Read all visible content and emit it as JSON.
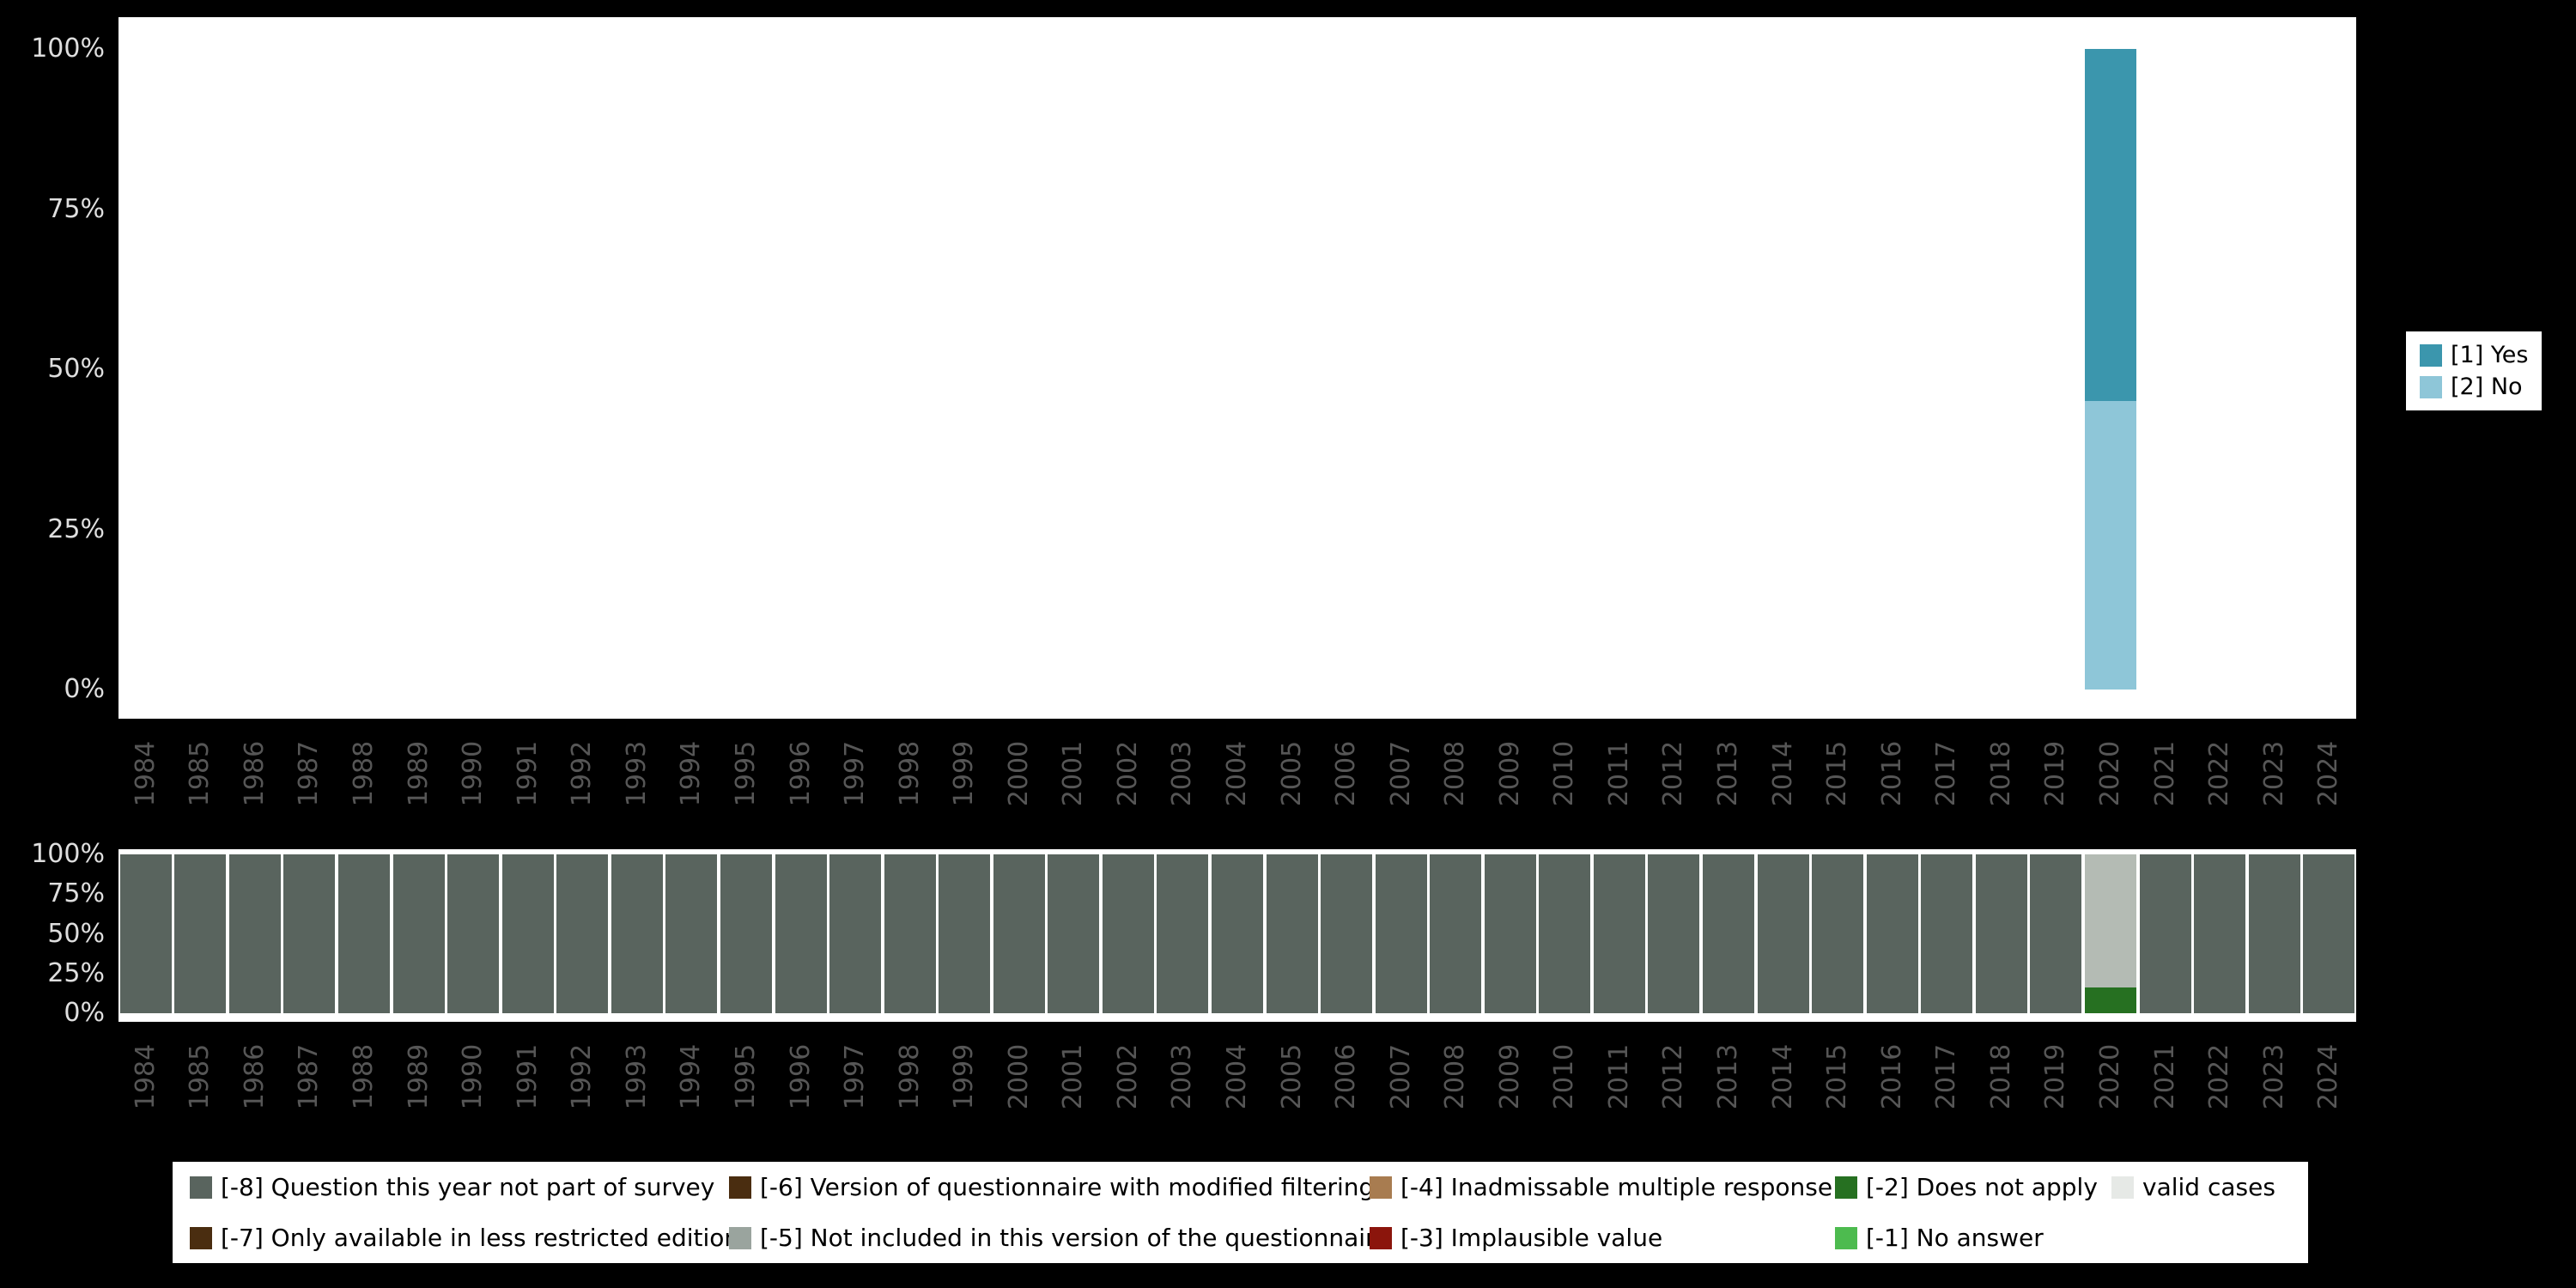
{
  "colors": {
    "background": "#000000",
    "plot_background": "#ffffff",
    "y_tick_label": "#dedede",
    "year_label": "#565656"
  },
  "chart_data": [
    {
      "id": "responses-over-time",
      "type": "bar",
      "stacked": true,
      "title": "",
      "xlabel": "",
      "ylabel": "",
      "ylim": [
        0,
        100
      ],
      "grid": false,
      "legend_position": "right",
      "y_ticks": [
        "0%",
        "25%",
        "50%",
        "75%",
        "100%"
      ],
      "categories": [
        "1984",
        "1985",
        "1986",
        "1987",
        "1988",
        "1989",
        "1990",
        "1991",
        "1992",
        "1993",
        "1994",
        "1995",
        "1996",
        "1997",
        "1998",
        "1999",
        "2000",
        "2001",
        "2002",
        "2003",
        "2004",
        "2005",
        "2006",
        "2007",
        "2008",
        "2009",
        "2010",
        "2011",
        "2012",
        "2013",
        "2014",
        "2015",
        "2016",
        "2017",
        "2018",
        "2019",
        "2020",
        "2021",
        "2022",
        "2023",
        "2024"
      ],
      "series": [
        {
          "name": "[1] Yes",
          "color": "#3b96ad",
          "values": {
            "2020": 55
          }
        },
        {
          "name": "[2] No",
          "color": "#8ec6d8",
          "values": {
            "2020": 45
          }
        }
      ]
    },
    {
      "id": "missing-values-over-time",
      "type": "bar",
      "stacked": true,
      "title": "",
      "xlabel": "",
      "ylabel": "",
      "ylim": [
        0,
        100
      ],
      "grid": false,
      "legend_position": "bottom",
      "y_ticks": [
        "0%",
        "25%",
        "50%",
        "75%",
        "100%"
      ],
      "categories": [
        "1984",
        "1985",
        "1986",
        "1987",
        "1988",
        "1989",
        "1990",
        "1991",
        "1992",
        "1993",
        "1994",
        "1995",
        "1996",
        "1997",
        "1998",
        "1999",
        "2000",
        "2001",
        "2002",
        "2003",
        "2004",
        "2005",
        "2006",
        "2007",
        "2008",
        "2009",
        "2010",
        "2011",
        "2012",
        "2013",
        "2014",
        "2015",
        "2016",
        "2017",
        "2018",
        "2019",
        "2020",
        "2021",
        "2022",
        "2023",
        "2024"
      ],
      "segment_order_note": "segments listed top to bottom",
      "default_segment": {
        "name": "[-8] Question this year not part of survey",
        "color": "#59645e",
        "value": 100
      },
      "overrides": {
        "2020": [
          {
            "name": "valid cases",
            "color": "#b4bbb4",
            "value": 84
          },
          {
            "name": "[-2] Does not apply",
            "color": "#267021",
            "value": 16
          }
        ]
      }
    }
  ],
  "legend_right": {
    "items": [
      {
        "label": "[1] Yes",
        "color": "#3b96ad"
      },
      {
        "label": "[2] No",
        "color": "#8ec6d8"
      }
    ]
  },
  "legend_bottom": {
    "rows": [
      [
        {
          "label": "[-8] Question this year not part of survey",
          "color": "#59645e"
        },
        {
          "label": "[-6] Version of questionnaire with modified filtering",
          "color": "#4a2d10"
        },
        {
          "label": "[-4] Inadmissable multiple response",
          "color": "#a87c50"
        },
        {
          "label": "[-2] Does not apply",
          "color": "#267021"
        },
        {
          "label": "valid cases",
          "color": "#e6e9e6"
        }
      ],
      [
        {
          "label": "[-7] Only available in less restricted edition",
          "color": "#4a2d10"
        },
        {
          "label": "[-5] Not included in this version of the questionnaire",
          "color": "#9aa49e"
        },
        {
          "label": "[-3] Implausible value",
          "color": "#8b150c"
        },
        {
          "label": "[-1] No answer",
          "color": "#4dbb4f"
        }
      ]
    ]
  }
}
